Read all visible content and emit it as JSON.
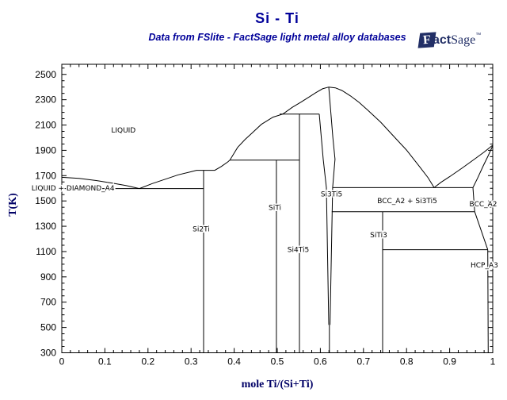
{
  "header": {
    "title": "Si - Ti",
    "subtitle": "Data from FSlite - FactSage light metal alloy databases"
  },
  "logo": {
    "f": "F",
    "act": "act",
    "sage": "Sage",
    "tm": "™"
  },
  "colors": {
    "accent": "#000099",
    "axis_label": "#000066",
    "line": "#000000",
    "logo": "#222f66"
  },
  "chart_data": {
    "type": "line",
    "title": "Si - Ti",
    "subtitle": "Data from FSlite - FactSage light metal alloy databases",
    "xlabel": "mole Ti/(Si+Ti)",
    "ylabel": "T(K)",
    "xlim": [
      0,
      1
    ],
    "ylim": [
      300,
      2580
    ],
    "grid": false,
    "x_major_ticks": [
      0,
      0.1,
      0.2,
      0.3,
      0.4,
      0.5,
      0.6,
      0.7,
      0.8,
      0.9,
      1
    ],
    "x_tick_labels": [
      "0",
      "0.1",
      "0.2",
      "0.3",
      "0.4",
      "0.5",
      "0.6",
      "0.7",
      "0.8",
      "0.9",
      "1"
    ],
    "x_minor_step": 0.02,
    "y_major_ticks": [
      300,
      500,
      700,
      900,
      1100,
      1300,
      1500,
      1700,
      1900,
      2100,
      2300,
      2500
    ],
    "y_tick_labels": [
      "300",
      "500",
      "700",
      "900",
      "1100",
      "1300",
      "1500",
      "1700",
      "1900",
      "2100",
      "2300",
      "2500"
    ],
    "y_minor_step": 50,
    "curves": [
      {
        "name": "liquidus-si",
        "points": [
          [
            0,
            1687
          ],
          [
            0.04,
            1678
          ],
          [
            0.08,
            1661
          ],
          [
            0.12,
            1639
          ],
          [
            0.15,
            1621
          ],
          [
            0.18,
            1598
          ]
        ]
      },
      {
        "name": "eutectic-si",
        "points": [
          [
            0,
            1598
          ],
          [
            0.329,
            1598
          ]
        ]
      },
      {
        "name": "liquidus-si2ti-dome-left",
        "points": [
          [
            0.18,
            1598
          ],
          [
            0.21,
            1637
          ],
          [
            0.24,
            1672
          ],
          [
            0.27,
            1706
          ],
          [
            0.3,
            1731
          ],
          [
            0.3125,
            1742
          ],
          [
            0.355,
            1742
          ],
          [
            0.37,
            1772
          ],
          [
            0.385,
            1808
          ],
          [
            0.39,
            1823
          ],
          [
            0.4,
            1878
          ],
          [
            0.408,
            1923
          ],
          [
            0.425,
            1985
          ],
          [
            0.44,
            2032
          ],
          [
            0.463,
            2105
          ],
          [
            0.49,
            2162
          ],
          [
            0.513,
            2187
          ],
          [
            0.535,
            2240
          ],
          [
            0.555,
            2281
          ],
          [
            0.575,
            2324
          ],
          [
            0.59,
            2357
          ],
          [
            0.605,
            2386
          ],
          [
            0.6195,
            2400
          ]
        ]
      },
      {
        "name": "liquidus-dome-right",
        "points": [
          [
            0.6195,
            2400
          ],
          [
            0.635,
            2394
          ],
          [
            0.65,
            2373
          ],
          [
            0.67,
            2330
          ],
          [
            0.69,
            2278
          ],
          [
            0.71,
            2218
          ],
          [
            0.74,
            2122
          ],
          [
            0.77,
            2012
          ],
          [
            0.8,
            1902
          ],
          [
            0.83,
            1772
          ],
          [
            0.85,
            1683
          ],
          [
            0.864,
            1605
          ]
        ]
      },
      {
        "name": "liquidus-ti",
        "points": [
          [
            0.864,
            1605
          ],
          [
            0.88,
            1647
          ],
          [
            0.9,
            1692
          ],
          [
            0.93,
            1762
          ],
          [
            0.96,
            1836
          ],
          [
            0.98,
            1886
          ],
          [
            1,
            1941
          ]
        ]
      },
      {
        "name": "solidus-bcc",
        "points": [
          [
            0.954,
            1605
          ],
          [
            0.965,
            1682
          ],
          [
            0.978,
            1777
          ],
          [
            0.99,
            1862
          ],
          [
            1,
            1937
          ]
        ]
      },
      {
        "name": "si2ti-line",
        "points": [
          [
            0.329,
            1742
          ],
          [
            0.329,
            300
          ]
        ]
      },
      {
        "name": "siti-line",
        "points": [
          [
            0.498,
            1823
          ],
          [
            0.498,
            300
          ]
        ]
      },
      {
        "name": "si4ti5-line",
        "points": [
          [
            0.5515,
            2187
          ],
          [
            0.5515,
            300
          ]
        ]
      },
      {
        "name": "peritectic-siti",
        "points": [
          [
            0.39,
            1823
          ],
          [
            0.5515,
            1823
          ]
        ]
      },
      {
        "name": "peritectic-si4ti5",
        "points": [
          [
            0.5055,
            2187
          ],
          [
            0.5975,
            2187
          ]
        ]
      },
      {
        "name": "si3ti5-left-boundary",
        "points": [
          [
            0.5975,
            2187
          ],
          [
            0.6066,
            1830
          ],
          [
            0.614,
            1605
          ],
          [
            0.6195,
            520
          ]
        ]
      },
      {
        "name": "si3ti5-right-boundary",
        "points": [
          [
            0.6195,
            2400
          ],
          [
            0.629,
            2000
          ],
          [
            0.634,
            1830
          ],
          [
            0.6285,
            1605
          ],
          [
            0.6225,
            520
          ]
        ]
      },
      {
        "name": "si3ti5-stem",
        "points": [
          [
            0.621,
            520
          ],
          [
            0.621,
            300
          ]
        ]
      },
      {
        "name": "eutectic-ti",
        "points": [
          [
            0.6285,
            1605
          ],
          [
            0.954,
            1605
          ]
        ]
      },
      {
        "name": "bcc-solvus",
        "points": [
          [
            0.954,
            1605
          ],
          [
            0.958,
            1415
          ]
        ]
      },
      {
        "name": "peritectoid-siti3",
        "points": [
          [
            0.6265,
            1415
          ],
          [
            0.958,
            1415
          ]
        ]
      },
      {
        "name": "siti3-line",
        "points": [
          [
            0.7445,
            1415
          ],
          [
            0.7445,
            300
          ]
        ]
      },
      {
        "name": "eutectoid-bcc",
        "points": [
          [
            0.7445,
            1115
          ],
          [
            0.9885,
            1115
          ]
        ]
      },
      {
        "name": "bcc-hcp-transus",
        "points": [
          [
            0.958,
            1415
          ],
          [
            0.9885,
            1115
          ]
        ]
      },
      {
        "name": "hcp-line",
        "points": [
          [
            0.9885,
            1115
          ],
          [
            0.9895,
            300
          ]
        ]
      }
    ],
    "region_labels": [
      {
        "text": "LIQUID",
        "x": 0.143,
        "T": 2060
      },
      {
        "text": "LIQUID + DIAMOND_A4",
        "x": 0.026,
        "T": 1600
      },
      {
        "text": "Si2Ti",
        "x": 0.3235,
        "T": 1278
      },
      {
        "text": "SiTi",
        "x": 0.4945,
        "T": 1448
      },
      {
        "text": "Si4Ti5",
        "x": 0.5487,
        "T": 1115
      },
      {
        "text": "Si3Ti5",
        "x": 0.626,
        "T": 1554
      },
      {
        "text": "BCC_A2 + Si3Ti5",
        "x": 0.8015,
        "T": 1501
      },
      {
        "text": "BCC_A2",
        "x": 0.978,
        "T": 1476
      },
      {
        "text": "SiTi3",
        "x": 0.7353,
        "T": 1231
      },
      {
        "text": "HCP_A3",
        "x": 0.9806,
        "T": 993
      }
    ]
  }
}
